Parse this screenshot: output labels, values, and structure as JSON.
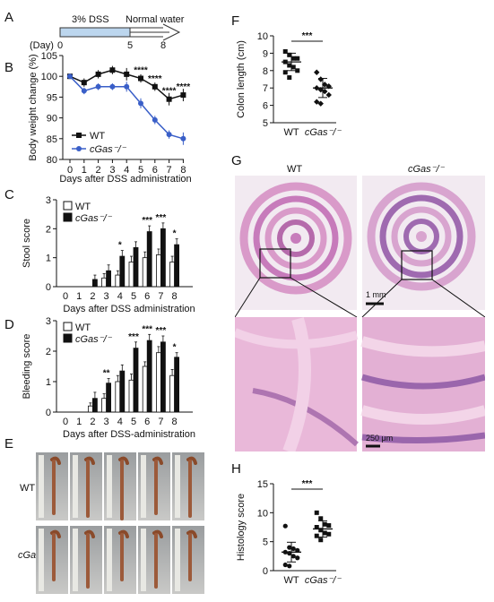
{
  "panel_letters": {
    "A": "A",
    "B": "B",
    "C": "C",
    "D": "D",
    "E": "E",
    "F": "F",
    "G": "G",
    "H": "H"
  },
  "timeline": {
    "day_label": "(Day)",
    "ticks": [
      "0",
      "5",
      "8"
    ],
    "dss_label": "3% DSS",
    "water_label": "Normal water",
    "colors": {
      "dss": "#bcd6ee",
      "arrow": "#333333"
    }
  },
  "panel_e": {
    "row_labels": [
      "WT",
      "cGas⁻/⁻"
    ]
  },
  "panel_g": {
    "col_labels": [
      "WT",
      "cGas⁻/⁻"
    ],
    "scale_top": "1 mm",
    "scale_bottom": "250 μm"
  },
  "chart_data": [
    {
      "id": "B",
      "type": "line",
      "xlabel": "Days after DSS administration",
      "ylabel": "Body weight change (%)",
      "x": [
        0,
        1,
        2,
        3,
        4,
        5,
        6,
        7,
        8
      ],
      "ylim": [
        80,
        105
      ],
      "yticks": [
        80,
        85,
        90,
        95,
        100,
        105
      ],
      "series": [
        {
          "name": "WT",
          "color": "#111111",
          "marker": "square",
          "values": [
            100,
            98.5,
            100.5,
            101.5,
            100.5,
            99.5,
            97.5,
            94.5,
            95.5
          ],
          "err": [
            0.5,
            1.0,
            1.0,
            1.0,
            1.5,
            1.0,
            1.0,
            1.5,
            1.5
          ]
        },
        {
          "name": "cGas⁻/⁻",
          "color": "#3a5fc8",
          "marker": "circle",
          "values": [
            100,
            96.5,
            97.5,
            97.5,
            97.5,
            93.5,
            89.5,
            86,
            85
          ],
          "err": [
            0.5,
            0.8,
            0.8,
            0.8,
            1.2,
            1.2,
            1.0,
            1.0,
            1.5
          ]
        }
      ],
      "annotations": [
        {
          "x": 5,
          "text": "****"
        },
        {
          "x": 6,
          "text": "****"
        },
        {
          "x": 7,
          "text": "****"
        },
        {
          "x": 8,
          "text": "****"
        }
      ]
    },
    {
      "id": "C",
      "type": "bar",
      "xlabel": "Days after DSS administration",
      "ylabel": "Stool score",
      "categories": [
        "0",
        "1",
        "2",
        "3",
        "4",
        "5",
        "6",
        "7",
        "8"
      ],
      "ylim": [
        0,
        3
      ],
      "yticks": [
        0,
        1,
        2,
        3
      ],
      "series": [
        {
          "name": "WT",
          "color": "#ffffff",
          "values": [
            0,
            0,
            0,
            0.3,
            0.4,
            0.85,
            1.0,
            1.1,
            0.85
          ],
          "err": [
            0,
            0,
            0,
            0.15,
            0.15,
            0.2,
            0.2,
            0.2,
            0.2
          ]
        },
        {
          "name": "cGas⁻/⁻",
          "color": "#111111",
          "values": [
            0,
            0,
            0.25,
            0.55,
            1.05,
            1.35,
            1.9,
            2.0,
            1.45
          ],
          "err": [
            0,
            0,
            0.15,
            0.2,
            0.2,
            0.2,
            0.2,
            0.2,
            0.2
          ]
        }
      ],
      "annotations": [
        {
          "x": "4",
          "text": "*"
        },
        {
          "x": "6",
          "text": "***"
        },
        {
          "x": "7",
          "text": "***"
        },
        {
          "x": "8",
          "text": "*"
        }
      ]
    },
    {
      "id": "D",
      "type": "bar",
      "xlabel": "Days after DSS-administration",
      "ylabel": "Bleeding score",
      "categories": [
        "0",
        "1",
        "2",
        "3",
        "4",
        "5",
        "6",
        "7",
        "8"
      ],
      "ylim": [
        0,
        3
      ],
      "yticks": [
        0,
        1,
        2,
        3
      ],
      "series": [
        {
          "name": "WT",
          "color": "#ffffff",
          "values": [
            0,
            0,
            0.2,
            0.45,
            1.0,
            1.05,
            1.5,
            1.95,
            1.2
          ],
          "err": [
            0,
            0,
            0.1,
            0.15,
            0.2,
            0.2,
            0.15,
            0.2,
            0.2
          ]
        },
        {
          "name": "cGas⁻/⁻",
          "color": "#111111",
          "values": [
            0,
            0,
            0.45,
            0.95,
            1.35,
            2.1,
            2.35,
            2.3,
            1.8
          ],
          "err": [
            0,
            0,
            0.2,
            0.15,
            0.2,
            0.2,
            0.2,
            0.2,
            0.15
          ]
        }
      ],
      "annotations": [
        {
          "x": "3",
          "text": "**"
        },
        {
          "x": "5",
          "text": "***"
        },
        {
          "x": "6",
          "text": "***"
        },
        {
          "x": "7",
          "text": "***"
        },
        {
          "x": "8",
          "text": "*"
        }
      ]
    },
    {
      "id": "F",
      "type": "scatter",
      "ylabel": "Colon length (cm)",
      "categories": [
        "WT",
        "cGas⁻/⁻"
      ],
      "ylim": [
        5,
        10
      ],
      "yticks": [
        5,
        6,
        7,
        8,
        9,
        10
      ],
      "series": [
        {
          "name": "WT",
          "marker": "square",
          "values": [
            9.1,
            8.9,
            8.7,
            8.7,
            8.5,
            8.3,
            8.2,
            8.0,
            7.9,
            7.6
          ],
          "mean": 8.5,
          "sd": 0.5
        },
        {
          "name": "cGas⁻/⁻",
          "marker": "diamond",
          "values": [
            7.9,
            7.5,
            7.2,
            7.1,
            7.0,
            6.9,
            6.8,
            6.6,
            6.2,
            6.1
          ],
          "mean": 7.0,
          "sd": 0.55
        }
      ],
      "significance": "***"
    },
    {
      "id": "H",
      "type": "scatter",
      "ylabel": "Histology score",
      "categories": [
        "WT",
        "cGas⁻/⁻"
      ],
      "ylim": [
        0,
        15
      ],
      "yticks": [
        0,
        5,
        10,
        15
      ],
      "series": [
        {
          "name": "WT",
          "marker": "circle",
          "values": [
            7.7,
            4.0,
            3.8,
            3.5,
            3.2,
            3.0,
            2.5,
            2.2,
            1.0,
            0.8
          ],
          "mean": 3.2,
          "sd": 1.7
        },
        {
          "name": "cGas⁻/⁻",
          "marker": "square",
          "values": [
            10.0,
            9.0,
            8.0,
            7.8,
            7.5,
            7.0,
            6.5,
            6.3,
            6.0,
            5.3
          ],
          "mean": 7.2,
          "sd": 1.4
        }
      ],
      "significance": "***"
    }
  ]
}
